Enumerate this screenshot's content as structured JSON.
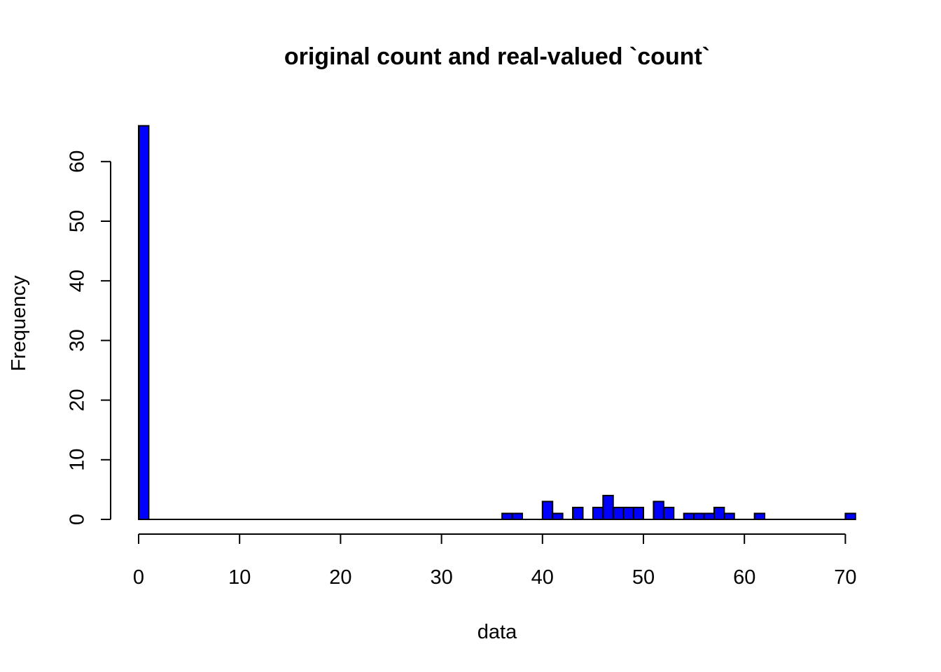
{
  "chart_data": {
    "type": "bar",
    "title": "original count and real-valued `count`",
    "xlabel": "data",
    "ylabel": "Frequency",
    "bar_color": "#0000ff",
    "bar_border_color": "#000000",
    "bin_width": 1,
    "xlim": [
      0,
      71
    ],
    "ylim": [
      0,
      66
    ],
    "xticks": [
      0,
      10,
      20,
      30,
      40,
      50,
      60,
      70
    ],
    "yticks": [
      0,
      10,
      20,
      30,
      40,
      50,
      60
    ],
    "grid": false,
    "bins": [
      {
        "x0": 0,
        "x1": 1,
        "count": 66
      },
      {
        "x0": 36,
        "x1": 37,
        "count": 1
      },
      {
        "x0": 37,
        "x1": 38,
        "count": 1
      },
      {
        "x0": 40,
        "x1": 41,
        "count": 3
      },
      {
        "x0": 41,
        "x1": 42,
        "count": 1
      },
      {
        "x0": 43,
        "x1": 44,
        "count": 2
      },
      {
        "x0": 45,
        "x1": 46,
        "count": 2
      },
      {
        "x0": 46,
        "x1": 47,
        "count": 4
      },
      {
        "x0": 47,
        "x1": 48,
        "count": 2
      },
      {
        "x0": 48,
        "x1": 49,
        "count": 2
      },
      {
        "x0": 49,
        "x1": 50,
        "count": 2
      },
      {
        "x0": 51,
        "x1": 52,
        "count": 3
      },
      {
        "x0": 52,
        "x1": 53,
        "count": 2
      },
      {
        "x0": 54,
        "x1": 55,
        "count": 1
      },
      {
        "x0": 55,
        "x1": 56,
        "count": 1
      },
      {
        "x0": 56,
        "x1": 57,
        "count": 1
      },
      {
        "x0": 57,
        "x1": 58,
        "count": 2
      },
      {
        "x0": 58,
        "x1": 59,
        "count": 1
      },
      {
        "x0": 61,
        "x1": 62,
        "count": 1
      },
      {
        "x0": 70,
        "x1": 71,
        "count": 1
      }
    ]
  }
}
